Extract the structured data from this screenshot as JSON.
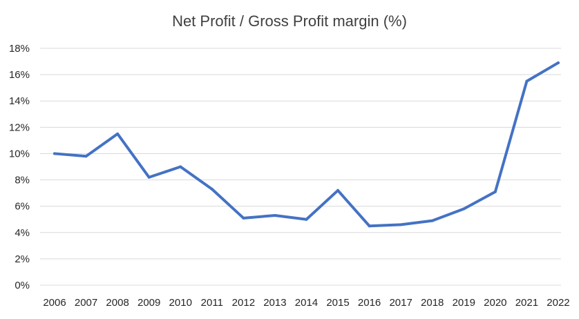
{
  "chart_data": {
    "type": "line",
    "title": "Net Profit / Gross Profit margin (%)",
    "xlabel": "",
    "ylabel": "",
    "x": [
      "2006",
      "2007",
      "2008",
      "2009",
      "2010",
      "2011",
      "2012",
      "2013",
      "2014",
      "2015",
      "2016",
      "2017",
      "2018",
      "2019",
      "2020",
      "2021",
      "2022"
    ],
    "series": [
      {
        "values": [
          10.0,
          9.8,
          11.5,
          8.2,
          9.0,
          7.3,
          5.1,
          5.3,
          5.0,
          7.2,
          4.5,
          4.6,
          4.9,
          5.8,
          7.1,
          15.5,
          16.9
        ]
      }
    ],
    "y_ticks": [
      "0%",
      "2%",
      "4%",
      "6%",
      "8%",
      "10%",
      "12%",
      "14%",
      "16%",
      "18%"
    ],
    "y_tick_values": [
      0,
      2,
      4,
      6,
      8,
      10,
      12,
      14,
      16,
      18
    ],
    "ylim": [
      0,
      18
    ],
    "grid": true,
    "legend": "none",
    "colors": {
      "line": "#4472c4",
      "grid": "#d9d9d9",
      "title": "#404040",
      "tick_text": "#262626"
    }
  }
}
